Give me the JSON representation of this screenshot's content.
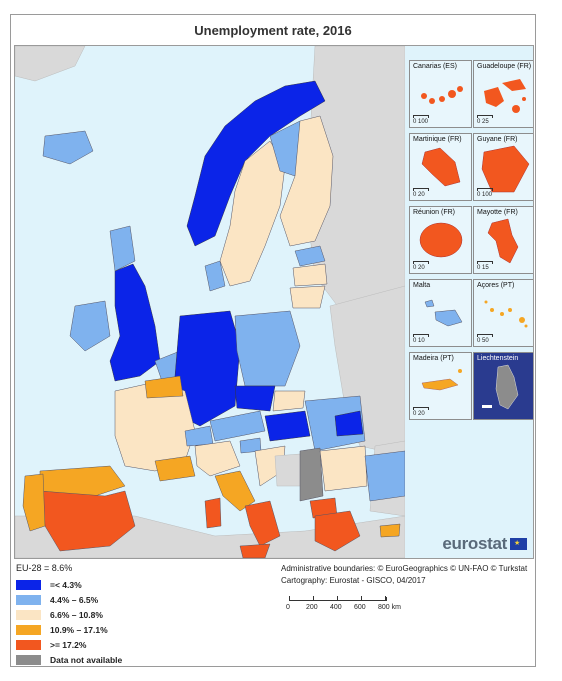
{
  "title": "Unemployment rate, 2016",
  "colors": {
    "sea": "#dff3fb",
    "non_eu": "#d9d9d9",
    "c1": "#0b24e8",
    "c2": "#7fb2ee",
    "c3": "#fbe5c4",
    "c4": "#f5a623",
    "c5": "#f2571f",
    "na": "#8c8c8c"
  },
  "insets": [
    {
      "label": "Canarias (ES)",
      "scale": "0 100",
      "fill": "c5"
    },
    {
      "label": "Guadeloupe (FR)",
      "scale": "0 25",
      "fill": "c5"
    },
    {
      "label": "Martinique (FR)",
      "scale": "0 20",
      "fill": "c5"
    },
    {
      "label": "Guyane (FR)",
      "scale": "0 100",
      "fill": "c5"
    },
    {
      "label": "Réunion (FR)",
      "scale": "0 20",
      "fill": "c5"
    },
    {
      "label": "Mayotte (FR)",
      "scale": "0 15",
      "fill": "c5"
    },
    {
      "label": "Malta",
      "scale": "0 10",
      "fill": "c2"
    },
    {
      "label": "Açores (PT)",
      "scale": "0 50",
      "fill": "c4"
    },
    {
      "label": "Madeira (PT)",
      "scale": "0 20",
      "fill": "c4"
    },
    {
      "label": "Liechtenstein",
      "scale": "",
      "fill": "na"
    }
  ],
  "logo": "eurostat",
  "legend": {
    "eu_average": "EU-28 = 8.6%",
    "classes": [
      {
        "label": "=< 4.3%",
        "color": "#0b24e8"
      },
      {
        "label": "4.4% – 6.5%",
        "color": "#7fb2ee"
      },
      {
        "label": "6.6% – 10.8%",
        "color": "#fbe5c4"
      },
      {
        "label": "10.9% – 17.1%",
        "color": "#f5a623"
      },
      {
        "label": ">= 17.2%",
        "color": "#f2571f"
      },
      {
        "label": "Data not available",
        "color": "#8c8c8c"
      }
    ]
  },
  "credits": {
    "line1": "Administrative boundaries: © EuroGeographics © UN-FAO © Turkstat",
    "line2": "Cartography: Eurostat - GISCO, 04/2017"
  },
  "scalebar": {
    "ticks": [
      "0",
      "200",
      "400",
      "600",
      "800 km"
    ]
  }
}
